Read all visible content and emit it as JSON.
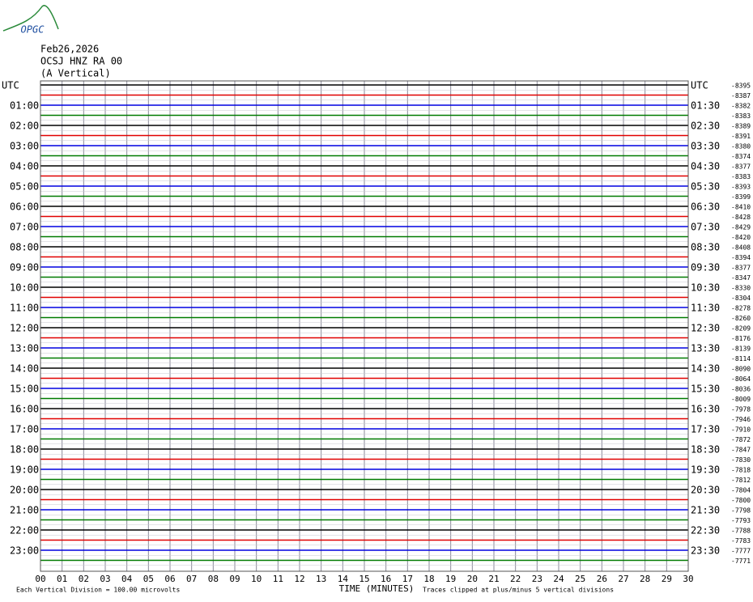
{
  "logo": "OPGC",
  "header": {
    "date": "Feb26,2026",
    "station": "OCSJ HNZ RA 00",
    "component": "(A Vertical)"
  },
  "plot": {
    "left_labels": [
      "UTC",
      "01:00",
      "02:00",
      "03:00",
      "04:00",
      "05:00",
      "06:00",
      "07:00",
      "08:00",
      "09:00",
      "10:00",
      "11:00",
      "12:00",
      "13:00",
      "14:00",
      "15:00",
      "16:00",
      "17:00",
      "18:00",
      "19:00",
      "20:00",
      "21:00",
      "22:00",
      "23:00"
    ],
    "right_labels": [
      "UTC",
      "01:30",
      "02:30",
      "03:30",
      "04:30",
      "05:30",
      "06:30",
      "07:30",
      "08:30",
      "09:30",
      "10:30",
      "11:30",
      "12:30",
      "13:30",
      "14:30",
      "15:30",
      "16:30",
      "17:30",
      "18:30",
      "19:30",
      "20:30",
      "21:30",
      "22:30",
      "23:30"
    ],
    "offsets": [
      -8395,
      -8387,
      -8382,
      -8383,
      -8389,
      -8391,
      -8380,
      -8374,
      -8377,
      -8383,
      -8393,
      -8399,
      -8410,
      -8428,
      -8429,
      -8420,
      -8408,
      -8394,
      -8377,
      -8347,
      -8330,
      -8304,
      -8278,
      -8260,
      -8209,
      -8176,
      -8139,
      -8114,
      -8090,
      -8064,
      -8036,
      -8009,
      -7978,
      -7946,
      -7910,
      -7872,
      -7847,
      -7830,
      -7818,
      -7812,
      -7804,
      -7800,
      -7798,
      -7793,
      -7788,
      -7783,
      -7777,
      -7771
    ],
    "trace_colors": [
      "#000000",
      "#e00000",
      "#0000e0",
      "#007a00"
    ],
    "xlim": [
      0,
      30
    ],
    "xticks": [
      {
        "value": 0,
        "label": "00"
      },
      {
        "value": 1,
        "label": "01"
      },
      {
        "value": 2,
        "label": "02"
      },
      {
        "value": 3,
        "label": "03"
      },
      {
        "value": 4,
        "label": "04"
      },
      {
        "value": 5,
        "label": "05"
      },
      {
        "value": 6,
        "label": "06"
      },
      {
        "value": 7,
        "label": "07"
      },
      {
        "value": 8,
        "label": "08"
      },
      {
        "value": 9,
        "label": "09"
      },
      10,
      11,
      12,
      13,
      14,
      15,
      16,
      17,
      18,
      19,
      20,
      21,
      22,
      23,
      24,
      25,
      26,
      27,
      28,
      29,
      30
    ],
    "x_label": "TIME (MINUTES)",
    "scale_note": "Each Vertical Division =  100.00 microvolts",
    "clip_note": "Traces clipped at plus/minus 5 vertical divisions"
  }
}
